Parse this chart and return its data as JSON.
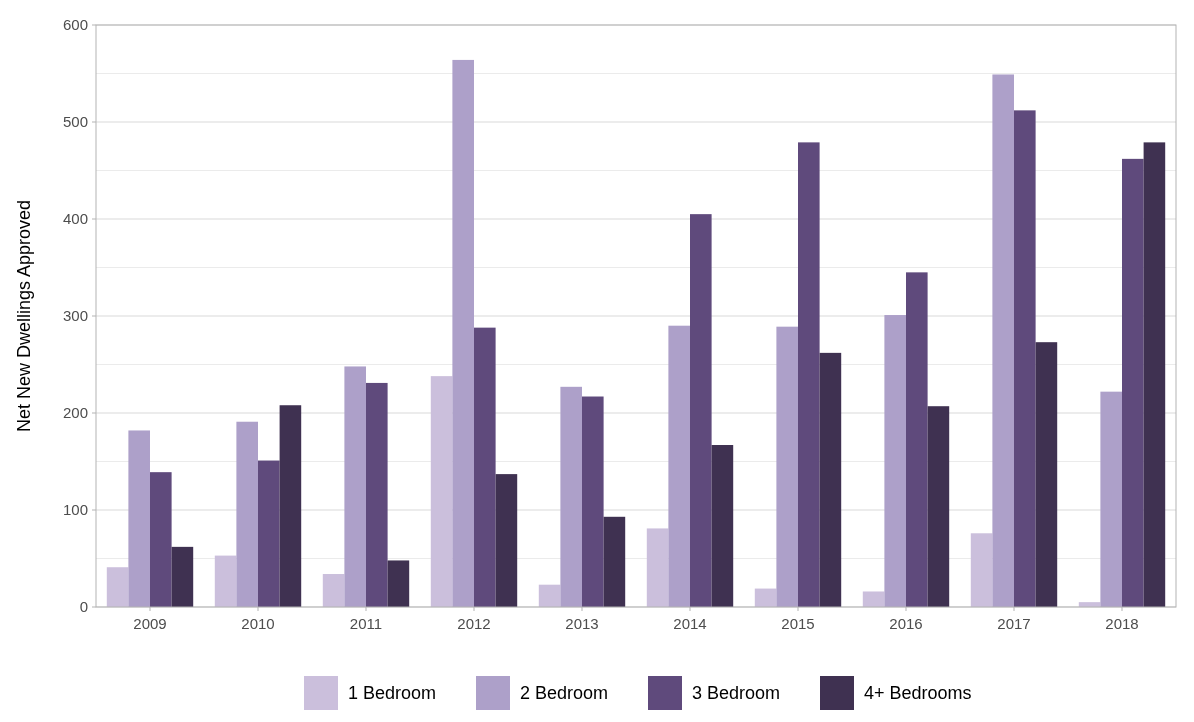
{
  "chart_data": {
    "type": "bar",
    "ylabel": "Net New Dwellings Approved",
    "categories": [
      "2009",
      "2010",
      "2011",
      "2012",
      "2013",
      "2014",
      "2015",
      "2016",
      "2017",
      "2018"
    ],
    "series": [
      {
        "name": "1 Bedroom",
        "color": "#cbbfdc",
        "values": [
          41,
          53,
          34,
          238,
          23,
          81,
          19,
          16,
          76,
          5
        ]
      },
      {
        "name": "2 Bedroom",
        "color": "#ada0c9",
        "values": [
          182,
          191,
          248,
          564,
          227,
          290,
          289,
          301,
          549,
          222
        ]
      },
      {
        "name": "3 Bedroom",
        "color": "#5f4a7c",
        "values": [
          139,
          151,
          231,
          288,
          217,
          405,
          479,
          345,
          512,
          462
        ]
      },
      {
        "name": "4+ Bedrooms",
        "color": "#3f3151",
        "values": [
          62,
          208,
          48,
          137,
          93,
          167,
          262,
          207,
          273,
          479
        ]
      }
    ],
    "ylim": [
      0,
      600
    ],
    "yticks": [
      0,
      {
        "value": 50,
        "label": null
      },
      100,
      {
        "value": 150,
        "label": null
      },
      200,
      {
        "value": 250,
        "label": null
      },
      300,
      {
        "value": 350,
        "label": null
      },
      400,
      {
        "value": 450,
        "label": null
      },
      500,
      {
        "value": 550,
        "label": null
      },
      600
    ],
    "grid": "y",
    "legend": "bottom"
  }
}
